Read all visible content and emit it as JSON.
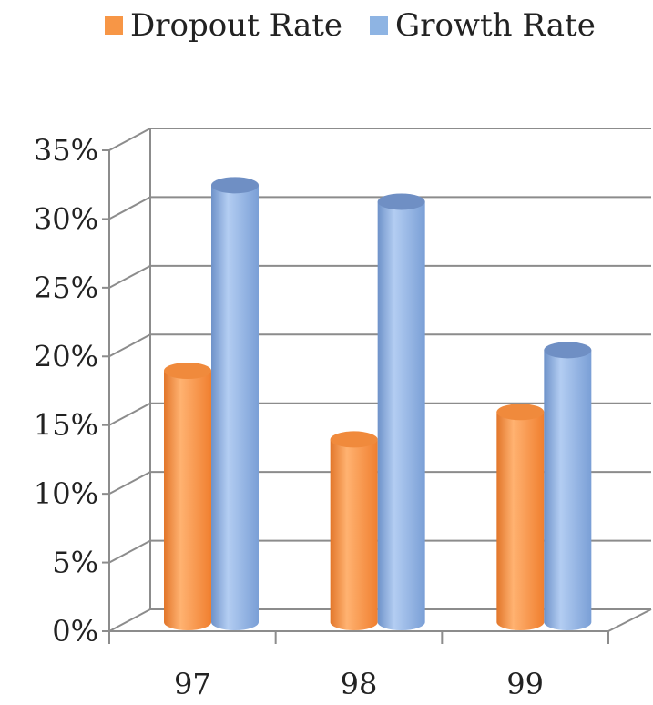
{
  "chart_data": {
    "type": "bar",
    "categories": [
      "97",
      "98",
      "99"
    ],
    "series": [
      {
        "name": "Dropout Rate",
        "color": "#f79646",
        "values": [
          17.5,
          12.5,
          14.5
        ]
      },
      {
        "name": "Growth Rate",
        "color": "#8eb4e3",
        "values": [
          31,
          29.8,
          19
        ]
      }
    ],
    "ylim": [
      0,
      35
    ],
    "yticks": [
      "0%",
      "5%",
      "10%",
      "15%",
      "20%",
      "25%",
      "30%",
      "35%"
    ],
    "grid": true,
    "legend_position": "top",
    "style": "3d-cylinder"
  }
}
